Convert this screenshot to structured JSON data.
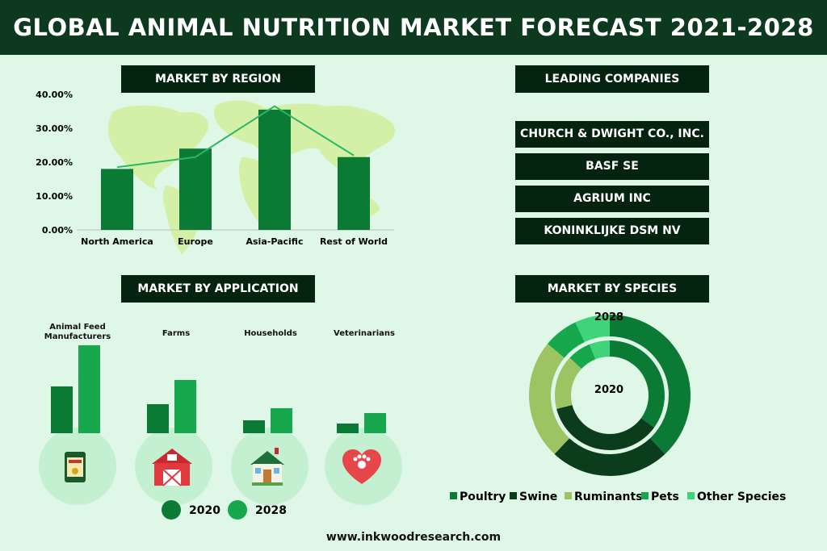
{
  "title": "GLOBAL ANIMAL NUTRITION MARKET FORECAST 2021-2028",
  "footer": "www.inkwoodresearch.com",
  "colors": {
    "dark": "#0d3a1e",
    "bar2020": "#0a7a35",
    "bar2028": "#17a84e",
    "line": "#2bb765",
    "map": "#d4f0a6",
    "circle": "#c4f0d2"
  },
  "headers": {
    "region": "MARKET BY REGION",
    "companies": "LEADING COMPANIES",
    "application": "MARKET BY APPLICATION",
    "species": "MARKET BY SPECIES"
  },
  "companies": [
    "CHURCH & DWIGHT CO., INC.",
    "BASF SE",
    "AGRIUM INC",
    "KONINKLIJKE DSM NV"
  ],
  "legend_years": [
    "2020",
    "2028"
  ],
  "donut_labels": {
    "outer": "2028",
    "inner": "2020"
  },
  "application_icons": [
    "feed-bag-icon",
    "barn-icon",
    "house-icon",
    "paw-heart-icon"
  ],
  "chart_data": [
    {
      "type": "bar",
      "title": "MARKET BY REGION",
      "categories": [
        "North America",
        "Europe",
        "Asia-Pacific",
        "Rest of World"
      ],
      "series": [
        {
          "values": [
            18,
            24,
            35.5,
            21.5
          ]
        },
        {
          "values": [
            18.5,
            21.5,
            36.5,
            22
          ]
        }
      ],
      "yticks": [
        "0.00%",
        "10.00%",
        "20.00%",
        "30.00%",
        "40.00%"
      ],
      "ylim": [
        0,
        40
      ],
      "grid": false
    },
    {
      "type": "bar",
      "title": "MARKET BY APPLICATION",
      "categories": [
        "Animal Feed Manufacturers",
        "Farms",
        "Households",
        "Veterinarians"
      ],
      "series": [
        {
          "name": "2020",
          "values": [
            58,
            36,
            16,
            12
          ]
        },
        {
          "name": "2028",
          "values": [
            109,
            66,
            31,
            25
          ]
        }
      ]
    },
    {
      "type": "pie",
      "title": "MARKET BY SPECIES",
      "categories": [
        "Poultry",
        "Swine",
        "Ruminants",
        "Pets",
        "Other Species"
      ],
      "colors": [
        "#0a7a35",
        "#0b3d1d",
        "#9cc462",
        "#17a84e",
        "#3fd47a"
      ],
      "series": [
        {
          "name": "2028",
          "values": [
            38,
            24,
            24,
            7,
            7
          ]
        },
        {
          "name": "2020",
          "values": [
            35,
            36,
            16,
            7,
            6
          ]
        }
      ]
    }
  ]
}
